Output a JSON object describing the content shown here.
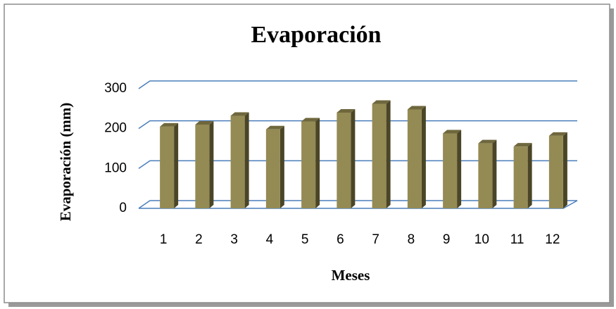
{
  "chart_data": {
    "type": "bar3d",
    "title": "Evaporación",
    "x_label": "Meses",
    "y_label": "Evaporación (mm)",
    "categories": [
      "1",
      "2",
      "3",
      "4",
      "5",
      "6",
      "7",
      "8",
      "9",
      "10",
      "11",
      "12"
    ],
    "values": [
      205,
      210,
      232,
      198,
      218,
      240,
      262,
      248,
      188,
      163,
      155,
      182
    ],
    "color": "#948a54",
    "ylim": [
      0,
      300
    ],
    "yticks": [
      0,
      100,
      200,
      300
    ],
    "grid": true
  }
}
